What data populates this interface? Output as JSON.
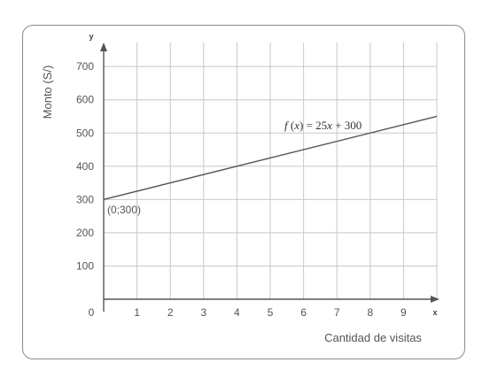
{
  "chart_data": {
    "type": "line",
    "xlabel": "Cantidad de visitas",
    "ylabel": "Monto (S/)",
    "x_axis_name": "x",
    "y_axis_name": "y",
    "origin_label": "0",
    "xlim": [
      0,
      10
    ],
    "ylim": [
      0,
      750
    ],
    "x_ticks": [
      1,
      2,
      3,
      4,
      5,
      6,
      7,
      8,
      9
    ],
    "y_ticks": [
      100,
      200,
      300,
      400,
      500,
      600,
      700
    ],
    "grid": true,
    "series": [
      {
        "x": [
          0,
          10
        ],
        "y": [
          300,
          550
        ]
      }
    ],
    "annotations": {
      "intercept_label": "(0;300)",
      "function_label": {
        "f": "f",
        "open": " (",
        "var": "x",
        "close_eq": ") = 25",
        "var2": "x",
        "tail": " + 300"
      }
    },
    "colors": {
      "grid": "#c8c8c8",
      "axis": "#555555",
      "line": "#555555"
    }
  }
}
